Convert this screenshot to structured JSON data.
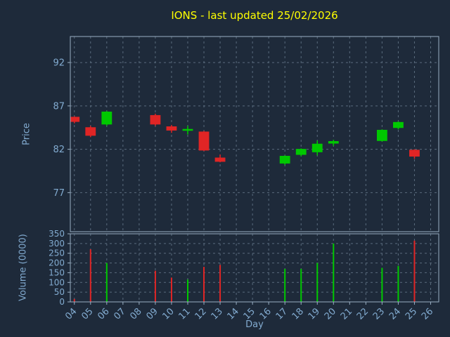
{
  "title": "IONS - last updated 25/02/2026",
  "colors": {
    "background": "#1e2a3a",
    "text": "#82abd0",
    "title": "#ffff00",
    "up": "#00c800",
    "down": "#e02525",
    "grid": "#5a6b7d",
    "spine": "#9ab0c4"
  },
  "chart_data": [
    {
      "type": "candlestick",
      "title": "IONS - last updated 25/02/2026",
      "xlabel": "Day",
      "ylabel": "Price",
      "ylim": [
        72.5,
        95
      ],
      "yticks": [
        77,
        82,
        87,
        92
      ],
      "grid": true,
      "candles": [
        {
          "day": 4,
          "open": 85.7,
          "high": 85.8,
          "low": 85.0,
          "close": 85.2
        },
        {
          "day": 5,
          "open": 84.5,
          "high": 84.7,
          "low": 83.4,
          "close": 83.6
        },
        {
          "day": 6,
          "open": 84.9,
          "high": 86.4,
          "low": 84.7,
          "close": 86.3
        },
        {
          "day": 9,
          "open": 85.9,
          "high": 86.1,
          "low": 84.7,
          "close": 84.9
        },
        {
          "day": 10,
          "open": 84.6,
          "high": 84.8,
          "low": 83.9,
          "close": 84.2
        },
        {
          "day": 11,
          "open": 84.2,
          "high": 84.7,
          "low": 83.7,
          "close": 84.3
        },
        {
          "day": 12,
          "open": 84.0,
          "high": 84.1,
          "low": 81.8,
          "close": 81.9
        },
        {
          "day": 13,
          "open": 81.0,
          "high": 81.4,
          "low": 80.5,
          "close": 80.6
        },
        {
          "day": 17,
          "open": 80.4,
          "high": 81.3,
          "low": 80.2,
          "close": 81.2
        },
        {
          "day": 18,
          "open": 81.4,
          "high": 82.1,
          "low": 81.2,
          "close": 82.0
        },
        {
          "day": 19,
          "open": 81.7,
          "high": 83.0,
          "low": 81.3,
          "close": 82.6
        },
        {
          "day": 20,
          "open": 82.7,
          "high": 83.1,
          "low": 82.4,
          "close": 82.9
        },
        {
          "day": 23,
          "open": 83.0,
          "high": 84.3,
          "low": 82.9,
          "close": 84.2
        },
        {
          "day": 24,
          "open": 84.5,
          "high": 85.2,
          "low": 84.3,
          "close": 85.1
        },
        {
          "day": 25,
          "open": 81.9,
          "high": 82.0,
          "low": 80.9,
          "close": 81.2
        }
      ]
    },
    {
      "type": "bar",
      "ylabel": "Volume (0000)",
      "ylim": [
        0,
        350
      ],
      "yticks": [
        0,
        50,
        100,
        150,
        200,
        250,
        300,
        350
      ],
      "grid": true,
      "xticks": [
        {
          "value": 4,
          "label": "04"
        },
        {
          "value": 5,
          "label": "05"
        },
        {
          "value": 6,
          "label": "06"
        },
        {
          "value": 7,
          "label": "07"
        },
        {
          "value": 8,
          "label": "08"
        },
        {
          "value": 9,
          "label": "09"
        },
        {
          "value": 10,
          "label": "10"
        },
        {
          "value": 11,
          "label": "11"
        },
        {
          "value": 12,
          "label": "12"
        },
        {
          "value": 13,
          "label": "13"
        },
        {
          "value": 14,
          "label": "14"
        },
        {
          "value": 15,
          "label": "15"
        },
        {
          "value": 16,
          "label": "16"
        },
        {
          "value": 17,
          "label": "17"
        },
        {
          "value": 18,
          "label": "18"
        },
        {
          "value": 19,
          "label": "19"
        },
        {
          "value": 20,
          "label": "20"
        },
        {
          "value": 21,
          "label": "21"
        },
        {
          "value": 22,
          "label": "22"
        },
        {
          "value": 23,
          "label": "23"
        },
        {
          "value": 24,
          "label": "24"
        },
        {
          "value": 25,
          "label": "25"
        },
        {
          "value": 26,
          "label": "26"
        }
      ],
      "bars": [
        {
          "day": 4,
          "value": 15,
          "direction": "down"
        },
        {
          "day": 5,
          "value": 270,
          "direction": "down"
        },
        {
          "day": 6,
          "value": 200,
          "direction": "up"
        },
        {
          "day": 9,
          "value": 160,
          "direction": "down"
        },
        {
          "day": 10,
          "value": 125,
          "direction": "down"
        },
        {
          "day": 11,
          "value": 115,
          "direction": "up"
        },
        {
          "day": 12,
          "value": 180,
          "direction": "down"
        },
        {
          "day": 13,
          "value": 190,
          "direction": "down"
        },
        {
          "day": 17,
          "value": 170,
          "direction": "up"
        },
        {
          "day": 18,
          "value": 170,
          "direction": "up"
        },
        {
          "day": 19,
          "value": 200,
          "direction": "up"
        },
        {
          "day": 20,
          "value": 300,
          "direction": "up"
        },
        {
          "day": 23,
          "value": 175,
          "direction": "up"
        },
        {
          "day": 24,
          "value": 185,
          "direction": "up"
        },
        {
          "day": 25,
          "value": 315,
          "direction": "down"
        }
      ]
    }
  ]
}
